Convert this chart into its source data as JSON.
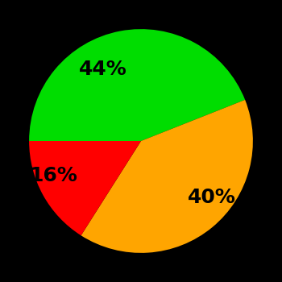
{
  "slices": [
    44,
    40,
    16
  ],
  "labels": [
    "44%",
    "40%",
    "16%"
  ],
  "colors": [
    "#00dd00",
    "#ffa500",
    "#ff0000"
  ],
  "background_color": "#000000",
  "startangle": 180,
  "counterclock": false,
  "figsize": [
    3.5,
    3.5
  ],
  "dpi": 100,
  "label_fontsize": 18,
  "labeldistance": 0.65
}
